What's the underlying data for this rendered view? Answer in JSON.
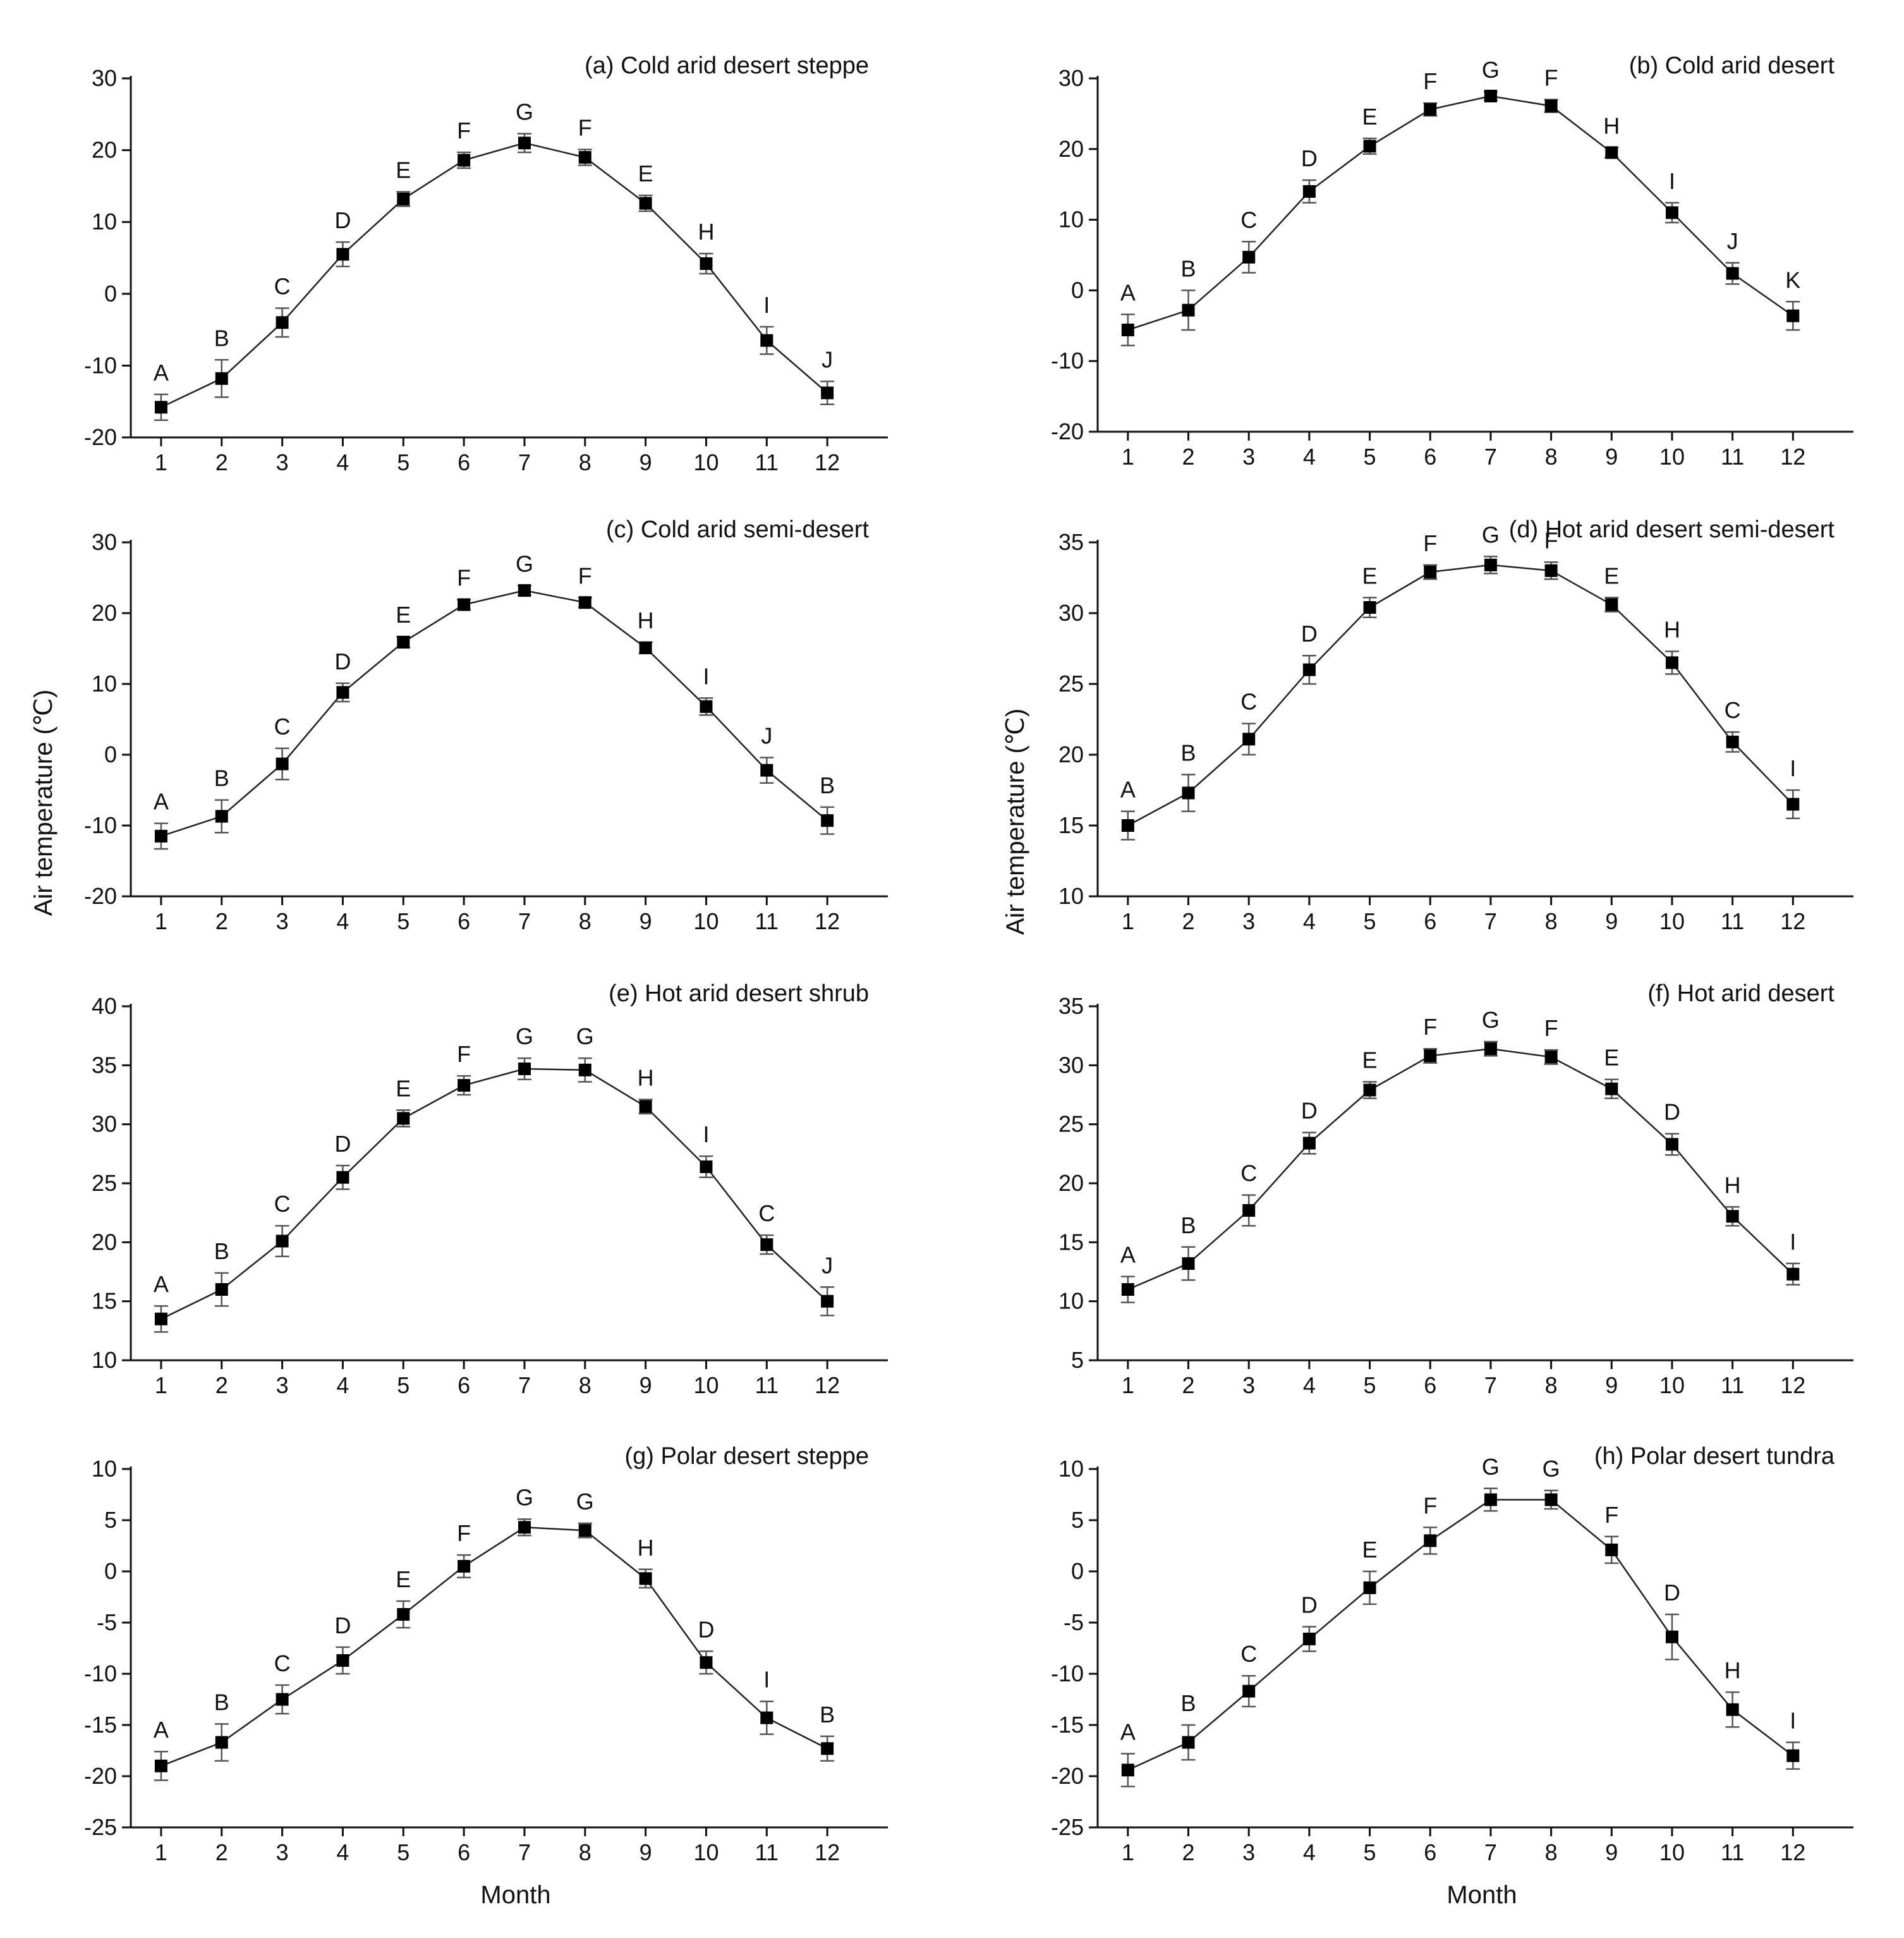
{
  "figure": {
    "ylabel": "Air temperature (℃)",
    "xlabel": "Month"
  },
  "chart_data": [
    {
      "type": "line",
      "title": "(a) Cold arid desert steppe",
      "categories": [
        "1",
        "2",
        "3",
        "4",
        "5",
        "6",
        "7",
        "8",
        "9",
        "10",
        "11",
        "12"
      ],
      "values": [
        -15.8,
        -11.8,
        -4.0,
        5.5,
        13.2,
        18.6,
        21.0,
        19.0,
        12.6,
        4.2,
        -6.5,
        -13.8
      ],
      "errors": [
        1.8,
        2.6,
        2.0,
        1.7,
        1.0,
        1.1,
        1.3,
        1.1,
        1.1,
        1.4,
        1.9,
        1.6
      ],
      "letters": [
        "A",
        "B",
        "C",
        "D",
        "E",
        "F",
        "G",
        "F",
        "E",
        "H",
        "I",
        "J"
      ],
      "ylim": [
        -20,
        30
      ],
      "yticks": [
        -20,
        -10,
        0,
        10,
        20,
        30
      ],
      "xlabel": "",
      "ylabel": ""
    },
    {
      "type": "line",
      "title": "(b) Cold arid desert",
      "categories": [
        "1",
        "2",
        "3",
        "4",
        "5",
        "6",
        "7",
        "8",
        "9",
        "10",
        "11",
        "12"
      ],
      "values": [
        -5.6,
        -2.8,
        4.7,
        14.0,
        20.4,
        25.6,
        27.5,
        26.1,
        19.5,
        11.0,
        2.4,
        -3.6
      ],
      "errors": [
        2.2,
        2.8,
        2.2,
        1.6,
        1.1,
        0.9,
        0.6,
        0.9,
        0.7,
        1.4,
        1.5,
        2.0
      ],
      "letters": [
        "A",
        "B",
        "C",
        "D",
        "E",
        "F",
        "G",
        "F",
        "H",
        "I",
        "J",
        "K"
      ],
      "ylim": [
        -20,
        30
      ],
      "yticks": [
        -20,
        -10,
        0,
        10,
        20,
        30
      ],
      "xlabel": "",
      "ylabel": ""
    },
    {
      "type": "line",
      "title": "(c) Cold arid semi-desert",
      "categories": [
        "1",
        "2",
        "3",
        "4",
        "5",
        "6",
        "7",
        "8",
        "9",
        "10",
        "11",
        "12"
      ],
      "values": [
        -11.5,
        -8.7,
        -1.3,
        8.8,
        15.9,
        21.2,
        23.2,
        21.5,
        15.1,
        6.8,
        -2.2,
        -9.3
      ],
      "errors": [
        1.8,
        2.3,
        2.2,
        1.3,
        0.8,
        0.7,
        0.7,
        0.7,
        0.8,
        1.2,
        1.8,
        1.9
      ],
      "letters": [
        "A",
        "B",
        "C",
        "D",
        "E",
        "F",
        "G",
        "F",
        "H",
        "I",
        "J",
        "B"
      ],
      "ylim": [
        -20,
        30
      ],
      "yticks": [
        -20,
        -10,
        0,
        10,
        20,
        30
      ],
      "xlabel": "",
      "ylabel": ""
    },
    {
      "type": "line",
      "title": "(d) Hot arid desert semi-desert",
      "categories": [
        "1",
        "2",
        "3",
        "4",
        "5",
        "6",
        "7",
        "8",
        "9",
        "10",
        "11",
        "12"
      ],
      "values": [
        15.0,
        17.3,
        21.1,
        26.0,
        30.4,
        32.9,
        33.4,
        33.0,
        30.6,
        26.5,
        20.9,
        16.5
      ],
      "errors": [
        1.0,
        1.3,
        1.1,
        1.0,
        0.7,
        0.5,
        0.6,
        0.6,
        0.5,
        0.8,
        0.7,
        1.0
      ],
      "letters": [
        "A",
        "B",
        "C",
        "D",
        "E",
        "F",
        "G",
        "F",
        "E",
        "H",
        "C",
        "I"
      ],
      "ylim": [
        10,
        35
      ],
      "yticks": [
        10,
        15,
        20,
        25,
        30,
        35
      ],
      "xlabel": "",
      "ylabel": ""
    },
    {
      "type": "line",
      "title": "(e) Hot arid desert shrub",
      "categories": [
        "1",
        "2",
        "3",
        "4",
        "5",
        "6",
        "7",
        "8",
        "9",
        "10",
        "11",
        "12"
      ],
      "values": [
        13.5,
        16.0,
        20.1,
        25.5,
        30.5,
        33.3,
        34.7,
        34.6,
        31.5,
        26.4,
        19.8,
        15.0
      ],
      "errors": [
        1.1,
        1.4,
        1.3,
        1.0,
        0.7,
        0.8,
        0.9,
        1.0,
        0.6,
        0.9,
        0.8,
        1.2
      ],
      "letters": [
        "A",
        "B",
        "C",
        "D",
        "E",
        "F",
        "G",
        "G",
        "H",
        "I",
        "C",
        "J"
      ],
      "ylim": [
        10,
        40
      ],
      "yticks": [
        10,
        15,
        20,
        25,
        30,
        35,
        40
      ],
      "xlabel": "",
      "ylabel": ""
    },
    {
      "type": "line",
      "title": "(f) Hot arid desert",
      "categories": [
        "1",
        "2",
        "3",
        "4",
        "5",
        "6",
        "7",
        "8",
        "9",
        "10",
        "11",
        "12"
      ],
      "values": [
        11.0,
        13.2,
        17.7,
        23.4,
        27.9,
        30.8,
        31.4,
        30.7,
        28.0,
        23.3,
        17.2,
        12.3
      ],
      "errors": [
        1.1,
        1.4,
        1.3,
        0.9,
        0.7,
        0.6,
        0.6,
        0.6,
        0.8,
        0.9,
        0.8,
        0.9
      ],
      "letters": [
        "A",
        "B",
        "C",
        "D",
        "E",
        "F",
        "G",
        "F",
        "E",
        "D",
        "H",
        "I"
      ],
      "ylim": [
        5,
        35
      ],
      "yticks": [
        5,
        10,
        15,
        20,
        25,
        30,
        35
      ],
      "xlabel": "",
      "ylabel": ""
    },
    {
      "type": "line",
      "title": "(g) Polar desert steppe",
      "categories": [
        "1",
        "2",
        "3",
        "4",
        "5",
        "6",
        "7",
        "8",
        "9",
        "10",
        "11",
        "12"
      ],
      "values": [
        -19.0,
        -16.7,
        -12.5,
        -8.7,
        -4.2,
        0.5,
        4.3,
        4.0,
        -0.7,
        -8.9,
        -14.3,
        -17.3
      ],
      "errors": [
        1.4,
        1.8,
        1.4,
        1.3,
        1.3,
        1.1,
        0.8,
        0.7,
        0.9,
        1.1,
        1.6,
        1.2
      ],
      "letters": [
        "A",
        "B",
        "C",
        "D",
        "E",
        "F",
        "G",
        "G",
        "H",
        "D",
        "I",
        "B"
      ],
      "ylim": [
        -25,
        10
      ],
      "yticks": [
        -25,
        -20,
        -15,
        -10,
        -5,
        0,
        5,
        10
      ],
      "xlabel": "Month",
      "ylabel": ""
    },
    {
      "type": "line",
      "title": "(h) Polar desert tundra",
      "categories": [
        "1",
        "2",
        "3",
        "4",
        "5",
        "6",
        "7",
        "8",
        "9",
        "10",
        "11",
        "12"
      ],
      "values": [
        -19.4,
        -16.7,
        -11.7,
        -6.6,
        -1.6,
        3.0,
        7.0,
        7.0,
        2.1,
        -6.4,
        -13.5,
        -18.0
      ],
      "errors": [
        1.6,
        1.7,
        1.5,
        1.2,
        1.6,
        1.3,
        1.1,
        0.9,
        1.3,
        2.2,
        1.7,
        1.3
      ],
      "letters": [
        "A",
        "B",
        "C",
        "D",
        "E",
        "F",
        "G",
        "G",
        "F",
        "D",
        "H",
        "I"
      ],
      "ylim": [
        -25,
        10
      ],
      "yticks": [
        -25,
        -20,
        -15,
        -10,
        -5,
        0,
        5,
        10
      ],
      "xlabel": "Month",
      "ylabel": ""
    }
  ]
}
